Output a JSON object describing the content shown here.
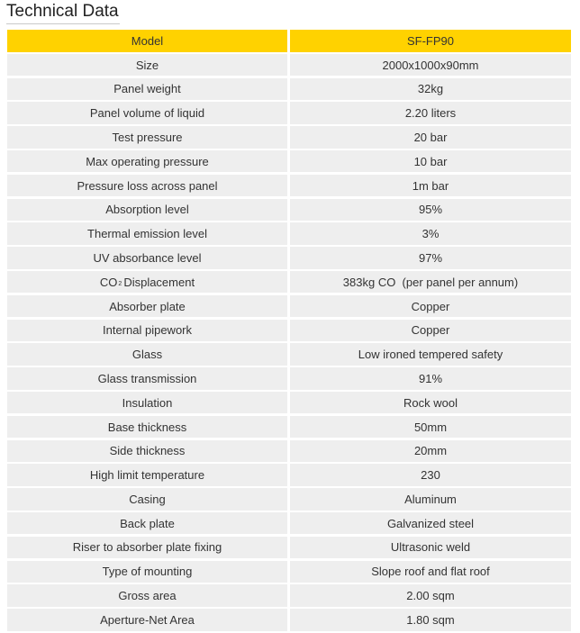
{
  "page": {
    "title": "Technical Data"
  },
  "table": {
    "header": {
      "model_label": "Model",
      "model_value": "SF-FP90"
    },
    "rows": [
      {
        "label": "Size",
        "value": "2000x1000x90mm"
      },
      {
        "label": "Panel weight",
        "value": "32kg"
      },
      {
        "label": "Panel volume of liquid",
        "value": "2.20 liters"
      },
      {
        "label": "Test pressure",
        "value": "20 bar"
      },
      {
        "label": "Max operating pressure",
        "value": "10 bar"
      },
      {
        "label": "Pressure loss across panel",
        "value": "1m bar"
      },
      {
        "label": "Absorption level",
        "value": "95%"
      },
      {
        "label": "Thermal emission level",
        "value": "3%"
      },
      {
        "label": "UV absorbance level",
        "value": "97%"
      },
      {
        "label_prefix": "CO",
        "label_sub": "2",
        "label_suffix": "Displacement",
        "value": "383kg CO  (per panel per annum)"
      },
      {
        "label": "Absorber plate",
        "value": "Copper"
      },
      {
        "label": "Internal pipework",
        "value": "Copper"
      },
      {
        "label": "Glass",
        "value": "Low ironed tempered safety"
      },
      {
        "label": "Glass transmission",
        "value": "91%"
      },
      {
        "label": "Insulation",
        "value": "Rock wool"
      },
      {
        "label": "Base thickness",
        "value": "50mm"
      },
      {
        "label": "Side thickness",
        "value": "20mm"
      },
      {
        "label": "High limit temperature",
        "value": "230"
      },
      {
        "label": "Casing",
        "value": "Aluminum"
      },
      {
        "label": "Back plate",
        "value": "Galvanized steel"
      },
      {
        "label": "Riser to absorber plate fixing",
        "value": "Ultrasonic weld"
      },
      {
        "label": "Type of mounting",
        "value": "Slope roof and flat roof"
      },
      {
        "label": "Gross area",
        "value": "2.00 sqm"
      },
      {
        "label": "Aperture-Net Area",
        "value": "1.80 sqm"
      }
    ]
  },
  "colors": {
    "header_bg": "#ffd200",
    "row_bg": "#eeeeee",
    "text": "#333333"
  }
}
